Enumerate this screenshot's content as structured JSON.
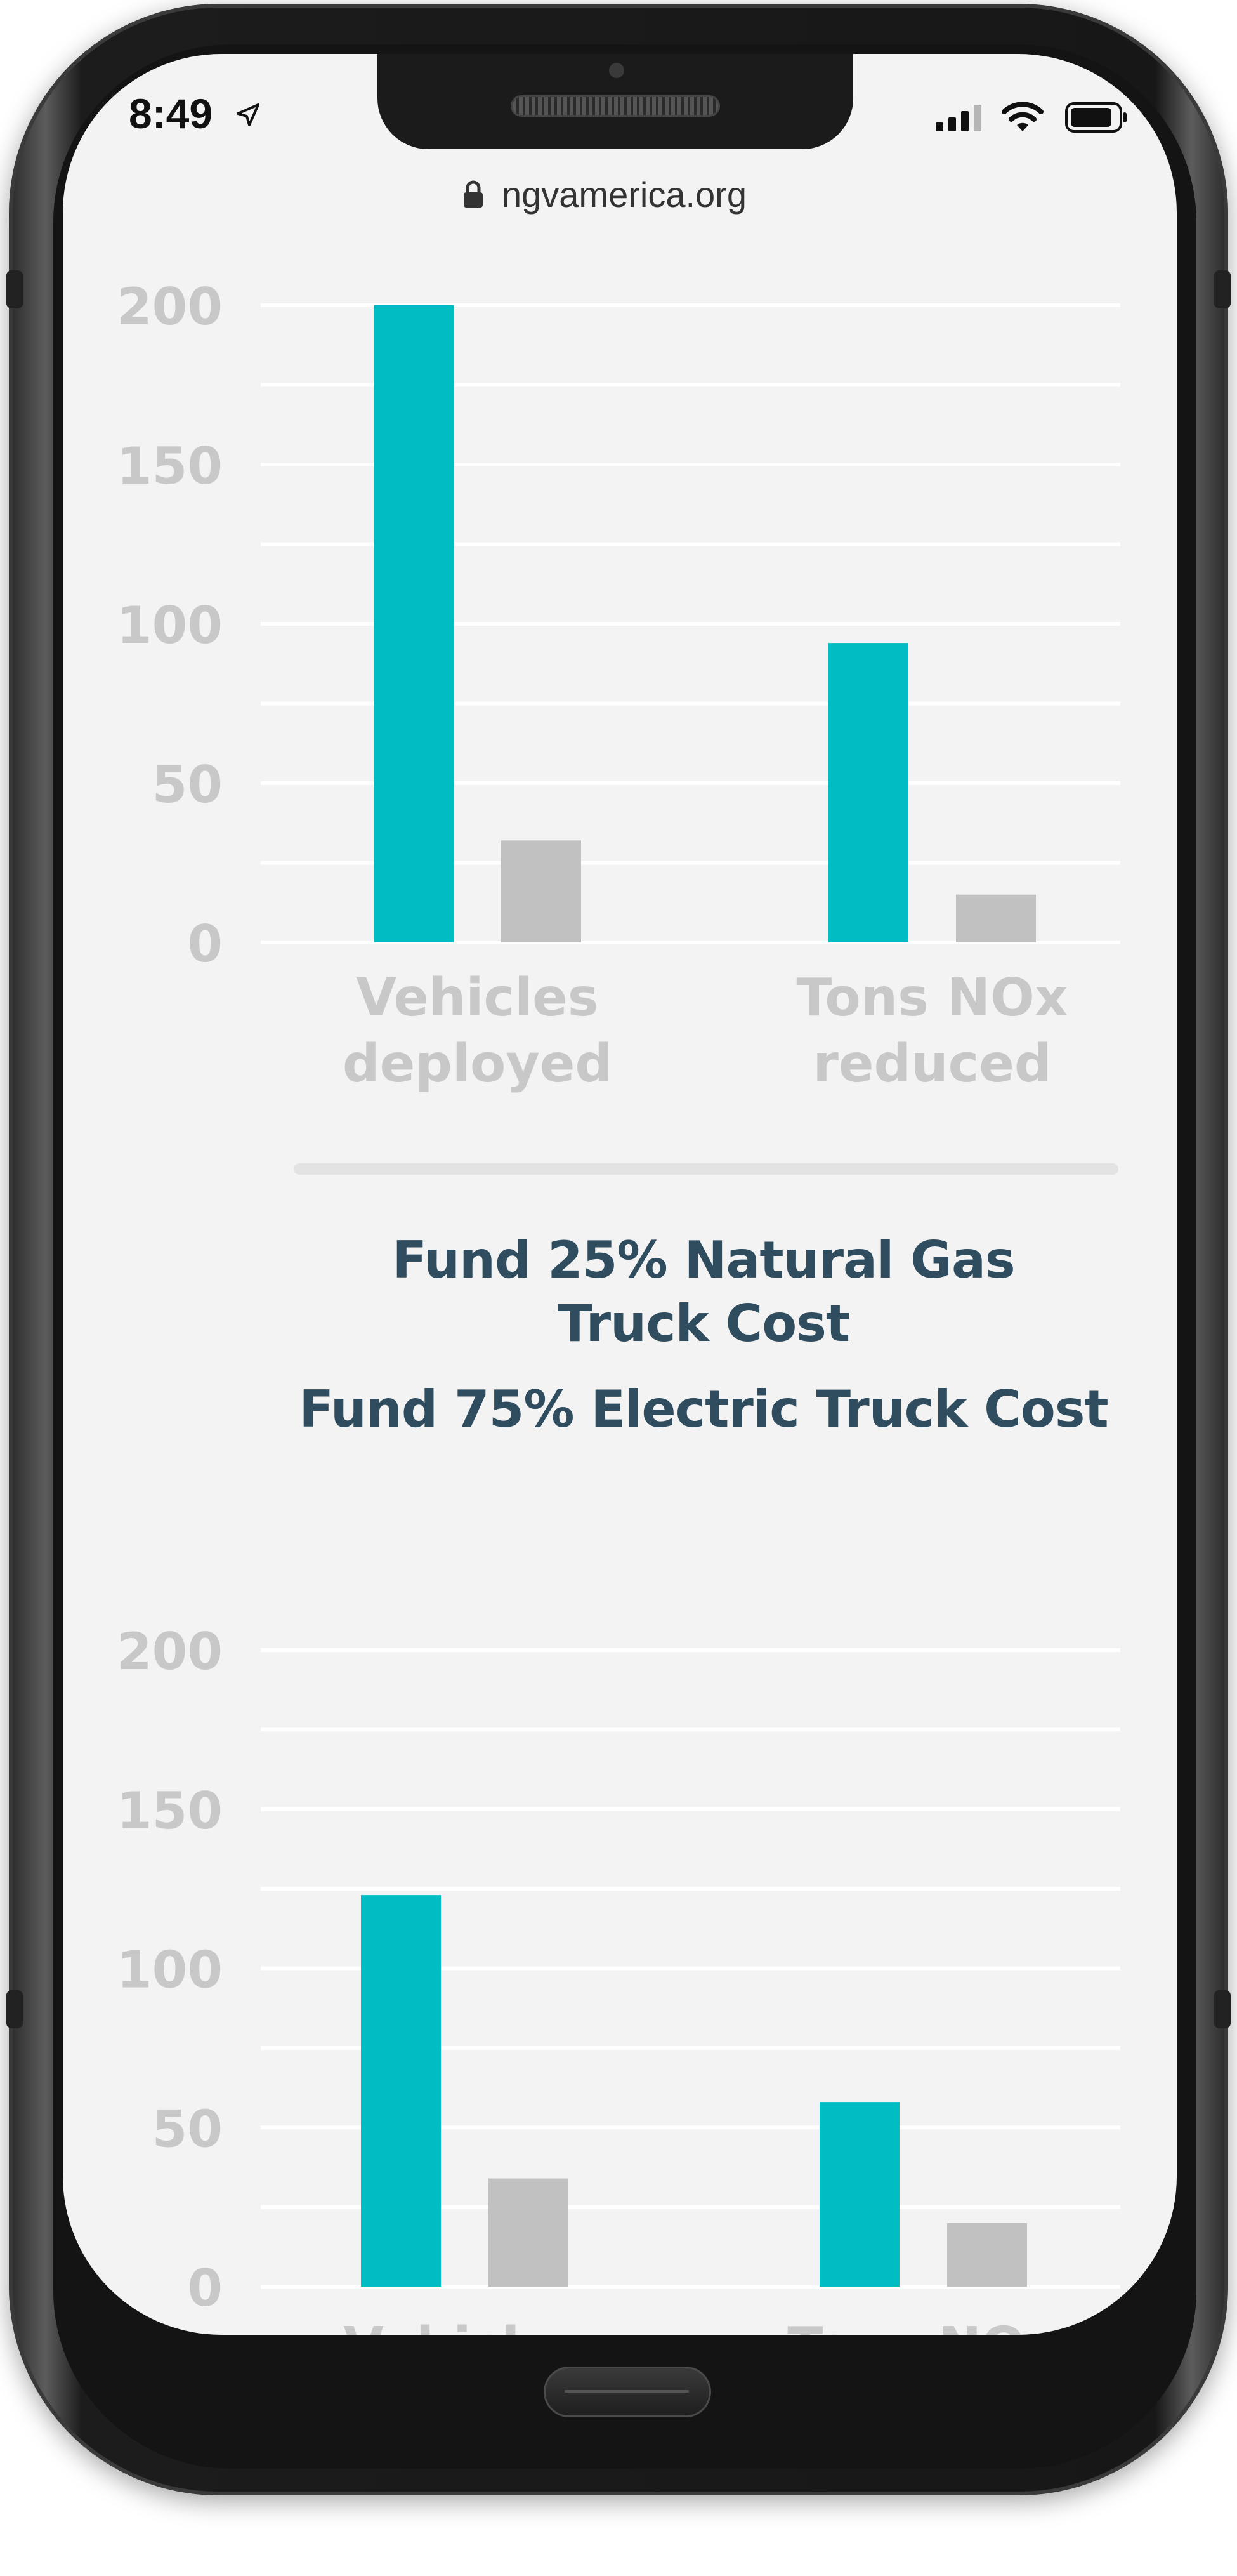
{
  "status_bar": {
    "time": "8:49"
  },
  "browser": {
    "url": "ngvamerica.org"
  },
  "colors": {
    "natural_gas_bar": "#00bcc3",
    "electric_bar": "#c1c1c1",
    "axis_text": "#c8c8c8",
    "heading": "#2f4d5f",
    "gridline": "#ffffff"
  },
  "section_headings": {
    "line1": "Fund 25% Natural Gas",
    "line2": "Truck Cost",
    "line3": "Fund 75% Electric Truck Cost"
  },
  "icons": [
    "location-arrow-icon",
    "signal-icon",
    "wifi-icon",
    "battery-icon",
    "lock-icon"
  ],
  "chart_data": [
    {
      "type": "bar",
      "categories": [
        "Vehicles\ndeployed",
        "Tons NOx\nreduced"
      ],
      "series": [
        {
          "values": [
            200,
            94
          ]
        },
        {
          "values": [
            32,
            15
          ]
        }
      ],
      "yticks": [
        0,
        50,
        100,
        150,
        200
      ],
      "ylim": [
        0,
        200
      ],
      "grid": true
    },
    {
      "type": "bar",
      "categories": [
        "Vehicles",
        "Tons NOx"
      ],
      "series": [
        {
          "values": [
            123,
            58
          ]
        },
        {
          "values": [
            34,
            20
          ]
        }
      ],
      "yticks": [
        0,
        50,
        100,
        150,
        200
      ],
      "ylim": [
        0,
        200
      ],
      "grid": true
    }
  ]
}
